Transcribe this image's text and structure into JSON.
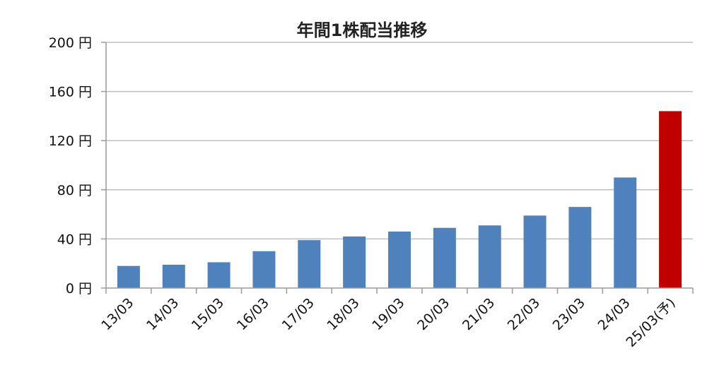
{
  "chart_data": {
    "type": "bar",
    "title": "年間1株配当推移",
    "xlabel": "",
    "ylabel": "",
    "categories": [
      "13/03",
      "14/03",
      "15/03",
      "16/03",
      "17/03",
      "18/03",
      "19/03",
      "20/03",
      "21/03",
      "22/03",
      "23/03",
      "24/03",
      "25/03(予)"
    ],
    "values": [
      18,
      19,
      21,
      30,
      39,
      42,
      46,
      49,
      51,
      59,
      66,
      90,
      144
    ],
    "ylim": [
      0,
      200
    ],
    "yticks": [
      0,
      40,
      80,
      120,
      160,
      200
    ],
    "ytick_labels": [
      "0 円",
      "40 円",
      "80 円",
      "120 円",
      "160 円",
      "200 円"
    ],
    "grid": true,
    "legend": "none",
    "colors": {
      "actual": "#4F81BD",
      "forecast": "#C00000",
      "grid": "#BFBFBF",
      "axis": "#9A9A9A"
    },
    "highlight_index": 12
  }
}
